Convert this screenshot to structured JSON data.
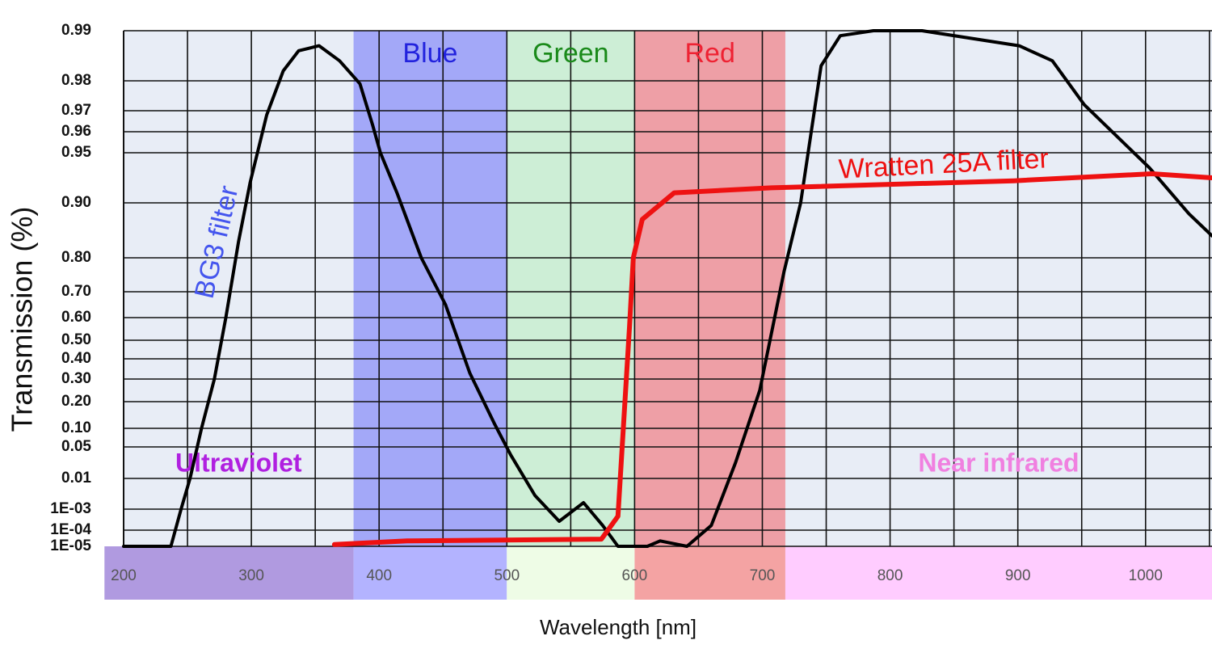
{
  "chart_data": {
    "type": "line",
    "x_label": "Wavelength [nm]",
    "y_label": "Transmission (%)",
    "xlim": [
      200,
      1052
    ],
    "xticks": [
      200,
      300,
      400,
      500,
      600,
      700,
      800,
      900,
      1000
    ],
    "yticks": [
      0.99,
      0.98,
      0.97,
      0.96,
      0.95,
      {
        "value": 0.9,
        "label": "0.90"
      },
      {
        "value": 0.8,
        "label": "0.80"
      },
      {
        "value": 0.7,
        "label": "0.70"
      },
      {
        "value": 0.6,
        "label": "0.60"
      },
      {
        "value": 0.5,
        "label": "0.50"
      },
      {
        "value": 0.4,
        "label": "0.40"
      },
      {
        "value": 0.3,
        "label": "0.30"
      },
      {
        "value": 0.2,
        "label": "0.20"
      },
      {
        "value": 0.1,
        "label": "0.10"
      },
      0.05,
      0.01,
      {
        "value": 0.001,
        "label": "1E-03"
      },
      {
        "value": 0.0001,
        "label": "1E-04"
      },
      {
        "value": 1e-05,
        "label": "1E-05"
      }
    ],
    "grid": true,
    "regions": [
      {
        "name": "Ultraviolet",
        "start": 185,
        "end": 380,
        "strip_color": "#b09ae0",
        "band_color": null,
        "name_color": "#b020e0",
        "name_position": "bottom"
      },
      {
        "name": "Blue",
        "start": 380,
        "end": 500,
        "strip_color": "#b3b3ff",
        "band_color": "#a3a8f8",
        "name_color": "#2222dd",
        "name_position": "top"
      },
      {
        "name": "Green",
        "start": 500,
        "end": 600,
        "strip_color": "#eefce6",
        "band_color": "#cdeed6",
        "name_color": "#1a8a1a",
        "name_position": "top"
      },
      {
        "name": "Red",
        "start": 600,
        "end": 718,
        "strip_color": "#f4a3a3",
        "band_color": "#ee9fa6",
        "name_color": "#ee2233",
        "name_position": "top"
      },
      {
        "name": "Near infrared",
        "start": 718,
        "end": 1052,
        "strip_color": "#ffccff",
        "band_color": null,
        "name_color": "#f080e0",
        "name_position": "bottom"
      }
    ],
    "series": [
      {
        "name": "BG3 filter",
        "color": "#000000",
        "label_color": "#4455ee",
        "width": 4,
        "x": [
          200,
          237,
          245,
          252,
          261,
          271,
          280,
          290,
          299,
          312,
          325,
          337,
          353,
          369,
          385,
          395,
          401,
          414,
          433,
          452,
          471,
          490,
          503,
          522,
          541,
          560,
          575,
          587,
          610,
          620,
          641,
          660,
          679,
          698,
          717,
          730,
          746,
          761,
          787,
          825,
          901,
          927,
          952,
          1003,
          1034,
          1052
        ],
        "values": [
          1e-05,
          1e-05,
          0.001,
          0.01,
          0.1,
          0.3,
          0.6,
          0.83,
          0.92,
          0.968,
          0.982,
          0.986,
          0.987,
          0.984,
          0.979,
          0.963,
          0.95,
          0.91,
          0.8,
          0.65,
          0.33,
          0.12,
          0.04,
          0.005,
          0.00048,
          0.0029,
          0.0003,
          1e-05,
          1e-05,
          4e-05,
          1e-05,
          0.0003,
          0.03,
          0.25,
          0.76,
          0.9,
          0.983,
          0.989,
          0.99,
          0.99,
          0.987,
          0.984,
          0.972,
          0.935,
          0.88,
          0.84
        ]
      },
      {
        "name": "Wratten 25A filter",
        "color": "#ee1111",
        "label_color": "#ee1111",
        "width": 6,
        "x": [
          365,
          422,
          574,
          587,
          596,
          599,
          606,
          631,
          707,
          897,
          1005,
          1052
        ],
        "values": [
          2e-05,
          4e-05,
          5e-05,
          0.0007,
          0.56,
          0.8,
          0.87,
          0.91,
          0.915,
          0.922,
          0.929,
          0.925
        ]
      }
    ]
  }
}
